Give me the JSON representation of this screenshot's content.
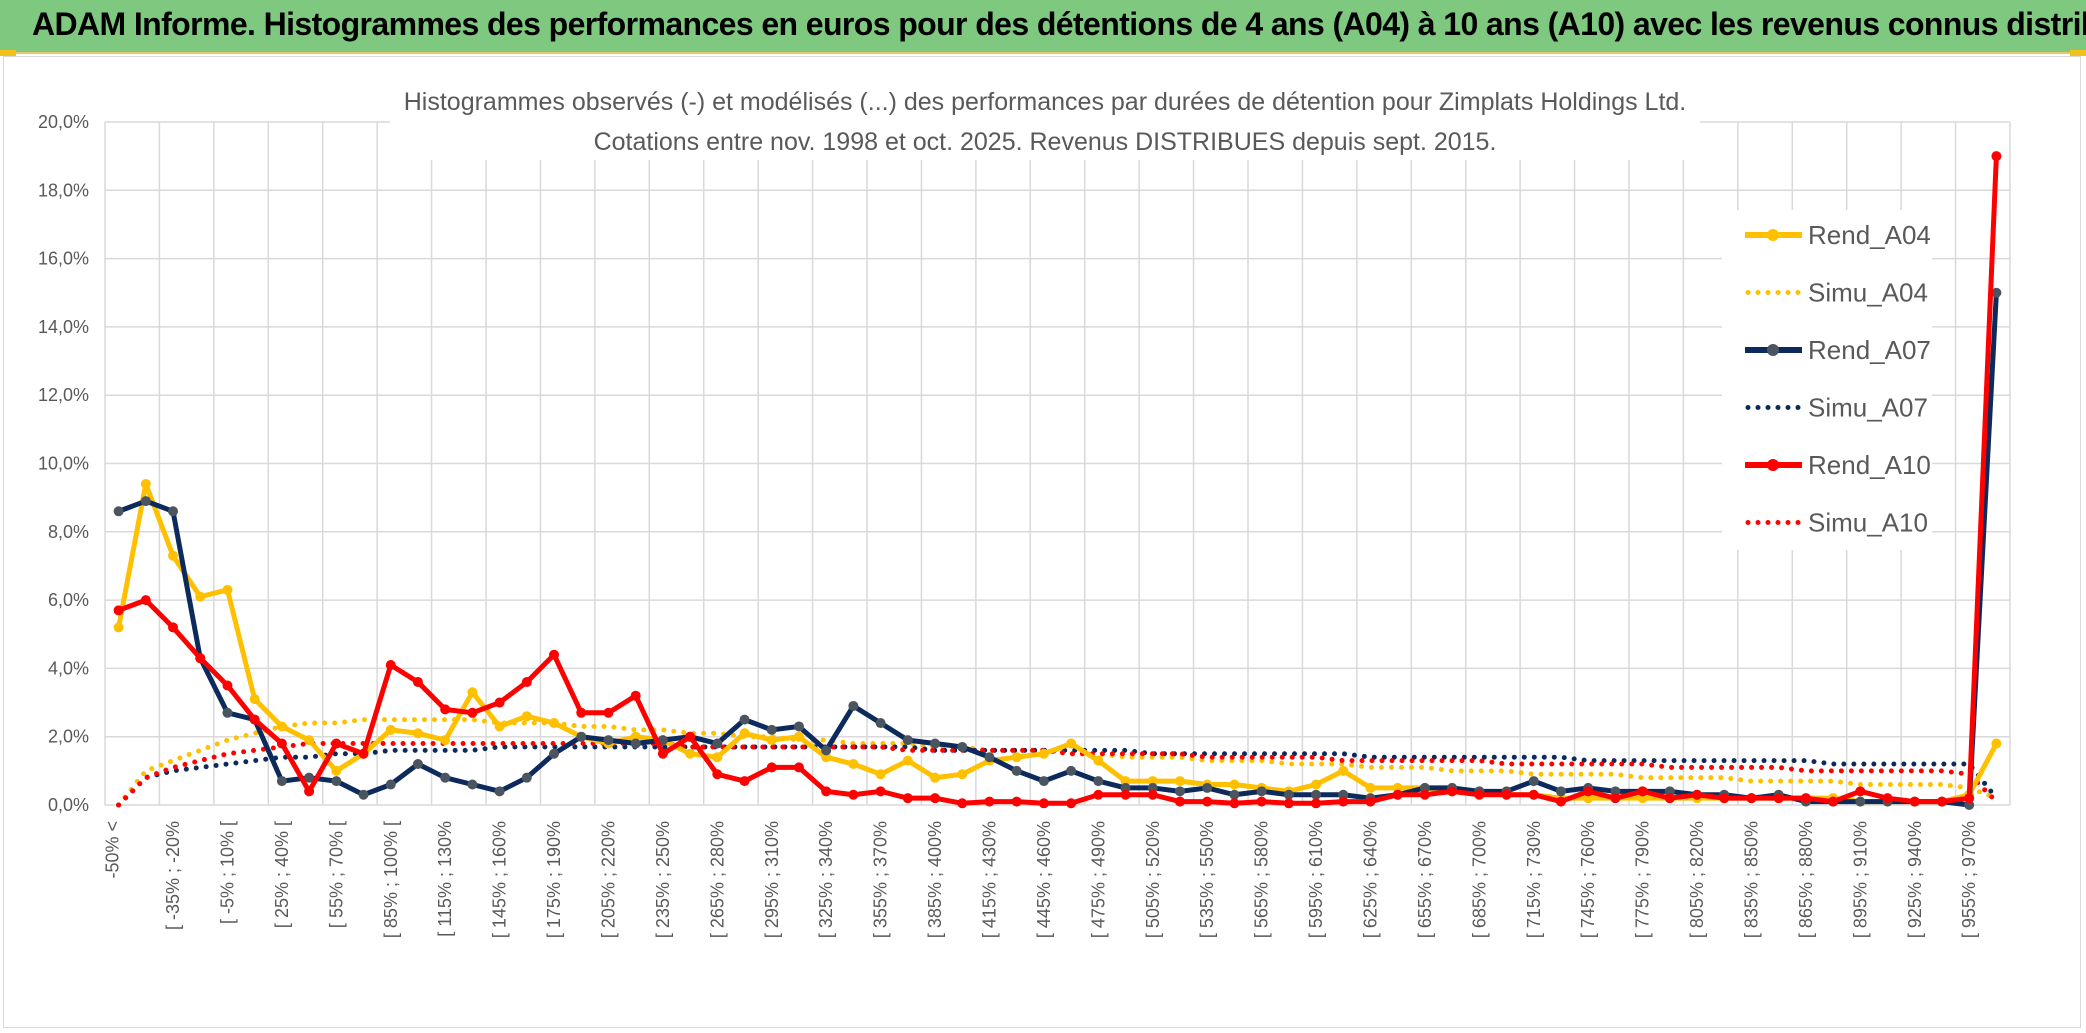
{
  "header": {
    "title": "ADAM Informe. Histogrammes des performances en euros pour des détentions de 4 ans (A04) à 10 ans (A10) avec les revenus connus distribués"
  },
  "colors": {
    "banner": "#7fc87f",
    "A04": "#ffc000",
    "A07": "#0d2a5c",
    "A10": "#ff0000",
    "grid": "#d9d9d9",
    "text": "#595959"
  },
  "chart_data": {
    "type": "line",
    "title": "Histogrammes observés (-) et modélisés (...) des performances par durées de détention pour Zimplats Holdings Ltd.",
    "subtitle": "Cotations entre nov. 1998 et oct. 2025. Revenus DISTRIBUES depuis sept. 2015.",
    "y_tick_labels": [
      "0,0%",
      "2,0%",
      "4,0%",
      "6,0%",
      "8,0%",
      "10,0%",
      "12,0%",
      "14,0%",
      "16,0%",
      "18,0%",
      "20,0%"
    ],
    "ylim": [
      0,
      20
    ],
    "y_unit": "%",
    "category_count": 70,
    "x_tick_labels": [
      "-50% <",
      "[ -35% ; -20%",
      "[ -5% ; 10% [",
      "[ 25% ; 40% [",
      "[ 55% ; 70% [",
      "[ 85% ; 100% [",
      "[ 115% ; 130%",
      "[ 145% ; 160%",
      "[ 175% ; 190%",
      "[ 205% ; 220%",
      "[ 235% ; 250%",
      "[ 265% ; 280%",
      "[ 295% ; 310%",
      "[ 325% ; 340%",
      "[ 355% ; 370%",
      "[ 385% ; 400%",
      "[ 415% ; 430%",
      "[ 445% ; 460%",
      "[ 475% ; 490%",
      "[ 505% ; 520%",
      "[ 535% ; 550%",
      "[ 565% ; 580%",
      "[ 595% ; 610%",
      "[ 625% ; 640%",
      "[ 655% ; 670%",
      "[ 685% ; 700%",
      "[ 715% ; 730%",
      "[ 745% ; 760%",
      "[ 775% ; 790%",
      "[ 805% ; 820%",
      "[ 835% ; 850%",
      "[ 865% ; 880%",
      "[ 895% ; 910%",
      "[ 925% ; 940%",
      "[ 955% ; 970%"
    ],
    "x_tick_every": 2,
    "legend_position": "right",
    "grid": true,
    "series": [
      {
        "name": "Rend_A04",
        "style": "solid",
        "color": "#ffc000",
        "values": [
          5.2,
          9.4,
          7.3,
          6.1,
          6.3,
          3.1,
          2.3,
          1.9,
          1.0,
          1.5,
          2.2,
          2.1,
          1.9,
          3.3,
          2.3,
          2.6,
          2.4,
          2.0,
          1.8,
          2.0,
          1.9,
          1.5,
          1.4,
          2.1,
          1.9,
          2.0,
          1.4,
          1.2,
          0.9,
          1.3,
          0.8,
          0.9,
          1.3,
          1.4,
          1.5,
          1.8,
          1.3,
          0.7,
          0.7,
          0.7,
          0.6,
          0.6,
          0.5,
          0.4,
          0.6,
          1.0,
          0.5,
          0.5,
          0.5,
          0.4,
          0.4,
          0.3,
          0.3,
          0.2,
          0.2,
          0.2,
          0.2,
          0.2,
          0.2,
          0.2,
          0.2,
          0.2,
          0.2,
          0.2,
          0.1,
          0.1,
          0.1,
          0.1,
          0.3,
          1.8
        ]
      },
      {
        "name": "Simu_A04",
        "style": "dotted",
        "color": "#ffc000",
        "values": [
          0.0,
          1.0,
          1.3,
          1.6,
          1.9,
          2.1,
          2.3,
          2.4,
          2.4,
          2.5,
          2.5,
          2.5,
          2.5,
          2.5,
          2.4,
          2.4,
          2.4,
          2.3,
          2.3,
          2.2,
          2.2,
          2.1,
          2.1,
          2.0,
          2.0,
          1.9,
          1.9,
          1.8,
          1.8,
          1.8,
          1.7,
          1.7,
          1.6,
          1.6,
          1.6,
          1.5,
          1.5,
          1.4,
          1.4,
          1.4,
          1.3,
          1.3,
          1.3,
          1.2,
          1.2,
          1.2,
          1.1,
          1.1,
          1.1,
          1.0,
          1.0,
          1.0,
          0.9,
          0.9,
          0.9,
          0.9,
          0.8,
          0.8,
          0.8,
          0.8,
          0.7,
          0.7,
          0.7,
          0.7,
          0.6,
          0.6,
          0.6,
          0.6,
          0.5,
          0.2
        ]
      },
      {
        "name": "Rend_A07",
        "style": "solid",
        "color": "#0d2a5c",
        "values": [
          8.6,
          8.9,
          8.6,
          4.3,
          2.7,
          2.5,
          0.7,
          0.8,
          0.7,
          0.3,
          0.6,
          1.2,
          0.8,
          0.6,
          0.4,
          0.8,
          1.5,
          2.0,
          1.9,
          1.8,
          1.9,
          2.0,
          1.8,
          2.5,
          2.2,
          2.3,
          1.6,
          2.9,
          2.4,
          1.9,
          1.8,
          1.7,
          1.4,
          1.0,
          0.7,
          1.0,
          0.7,
          0.5,
          0.5,
          0.4,
          0.5,
          0.3,
          0.4,
          0.3,
          0.3,
          0.3,
          0.2,
          0.3,
          0.5,
          0.5,
          0.4,
          0.4,
          0.7,
          0.4,
          0.5,
          0.4,
          0.4,
          0.4,
          0.3,
          0.3,
          0.2,
          0.3,
          0.1,
          0.1,
          0.1,
          0.1,
          0.1,
          0.1,
          0.0,
          15.0
        ]
      },
      {
        "name": "Simu_A07",
        "style": "dotted",
        "color": "#0d2a5c",
        "values": [
          0.0,
          0.8,
          1.0,
          1.1,
          1.2,
          1.3,
          1.4,
          1.4,
          1.5,
          1.5,
          1.6,
          1.6,
          1.6,
          1.6,
          1.7,
          1.7,
          1.7,
          1.7,
          1.7,
          1.7,
          1.7,
          1.7,
          1.7,
          1.7,
          1.7,
          1.7,
          1.7,
          1.7,
          1.7,
          1.7,
          1.6,
          1.6,
          1.6,
          1.6,
          1.6,
          1.6,
          1.6,
          1.6,
          1.5,
          1.5,
          1.5,
          1.5,
          1.5,
          1.5,
          1.5,
          1.5,
          1.4,
          1.4,
          1.4,
          1.4,
          1.4,
          1.4,
          1.4,
          1.4,
          1.3,
          1.3,
          1.3,
          1.3,
          1.3,
          1.3,
          1.3,
          1.3,
          1.3,
          1.2,
          1.2,
          1.2,
          1.2,
          1.2,
          1.2,
          0.2
        ]
      },
      {
        "name": "Rend_A10",
        "style": "solid",
        "color": "#ff0000",
        "values": [
          5.7,
          6.0,
          5.2,
          4.3,
          3.5,
          2.5,
          1.8,
          0.4,
          1.8,
          1.5,
          4.1,
          3.6,
          2.8,
          2.7,
          3.0,
          3.6,
          4.4,
          2.7,
          2.7,
          3.2,
          1.5,
          2.0,
          0.9,
          0.7,
          1.1,
          1.1,
          0.4,
          0.3,
          0.4,
          0.2,
          0.2,
          0.05,
          0.1,
          0.1,
          0.05,
          0.05,
          0.3,
          0.3,
          0.3,
          0.1,
          0.1,
          0.05,
          0.1,
          0.05,
          0.05,
          0.1,
          0.1,
          0.3,
          0.3,
          0.4,
          0.3,
          0.3,
          0.3,
          0.1,
          0.4,
          0.2,
          0.4,
          0.2,
          0.3,
          0.2,
          0.2,
          0.2,
          0.2,
          0.1,
          0.4,
          0.2,
          0.1,
          0.1,
          0.2,
          19.0
        ]
      },
      {
        "name": "Simu_A10",
        "style": "dotted",
        "color": "#ff0000",
        "values": [
          0.0,
          0.8,
          1.1,
          1.3,
          1.5,
          1.6,
          1.7,
          1.8,
          1.8,
          1.8,
          1.8,
          1.8,
          1.8,
          1.8,
          1.8,
          1.8,
          1.8,
          1.8,
          1.8,
          1.8,
          1.8,
          1.7,
          1.7,
          1.7,
          1.7,
          1.7,
          1.7,
          1.7,
          1.7,
          1.6,
          1.6,
          1.6,
          1.6,
          1.6,
          1.6,
          1.5,
          1.5,
          1.5,
          1.5,
          1.5,
          1.4,
          1.4,
          1.4,
          1.4,
          1.4,
          1.3,
          1.3,
          1.3,
          1.3,
          1.3,
          1.3,
          1.2,
          1.2,
          1.2,
          1.2,
          1.2,
          1.2,
          1.1,
          1.1,
          1.1,
          1.1,
          1.1,
          1.0,
          1.0,
          1.0,
          1.0,
          1.0,
          1.0,
          0.9,
          0.1
        ]
      }
    ]
  }
}
